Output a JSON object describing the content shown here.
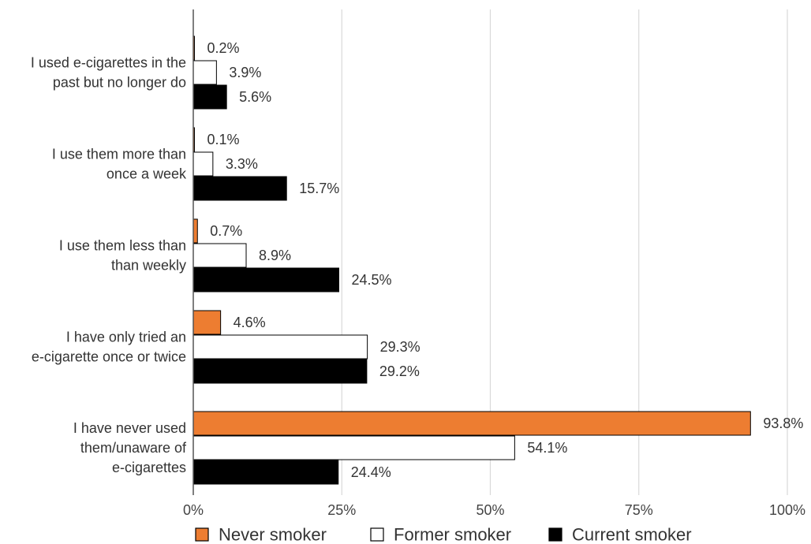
{
  "chart_data": {
    "type": "bar",
    "orientation": "horizontal",
    "categories": [
      [
        "I used e-cigarettes in the",
        "past but no longer do"
      ],
      [
        "I use them more than",
        "once a week"
      ],
      [
        "I use them less than",
        "than weekly"
      ],
      [
        "I have only tried an",
        "e-cigarette once or twice"
      ],
      [
        "I have never used",
        "them/unaware of",
        "e-cigarettes"
      ]
    ],
    "series": [
      {
        "name": "Never smoker",
        "color": "#ED7D31",
        "values": [
          0.2,
          0.1,
          0.7,
          4.6,
          93.8
        ],
        "labels": [
          "0.2%",
          "0.1%",
          "0.7%",
          "4.6%",
          "93.8%"
        ]
      },
      {
        "name": "Former smoker",
        "color": "#FFFFFF",
        "values": [
          3.9,
          3.3,
          8.9,
          29.3,
          54.1
        ],
        "labels": [
          "3.9%",
          "3.3%",
          "8.9%",
          "29.3%",
          "54.1%"
        ]
      },
      {
        "name": "Current smoker",
        "color": "#000000",
        "values": [
          5.6,
          15.7,
          24.5,
          29.2,
          24.4
        ],
        "labels": [
          "5.6%",
          "15.7%",
          "24.5%",
          "29.2%",
          "24.4%"
        ]
      }
    ],
    "x_ticks": [
      "0%",
      "25%",
      "50%",
      "75%",
      "100%"
    ],
    "xlim": [
      0,
      100
    ],
    "grid": true,
    "legend_position": "bottom",
    "title": "",
    "xlabel": "",
    "ylabel": ""
  }
}
